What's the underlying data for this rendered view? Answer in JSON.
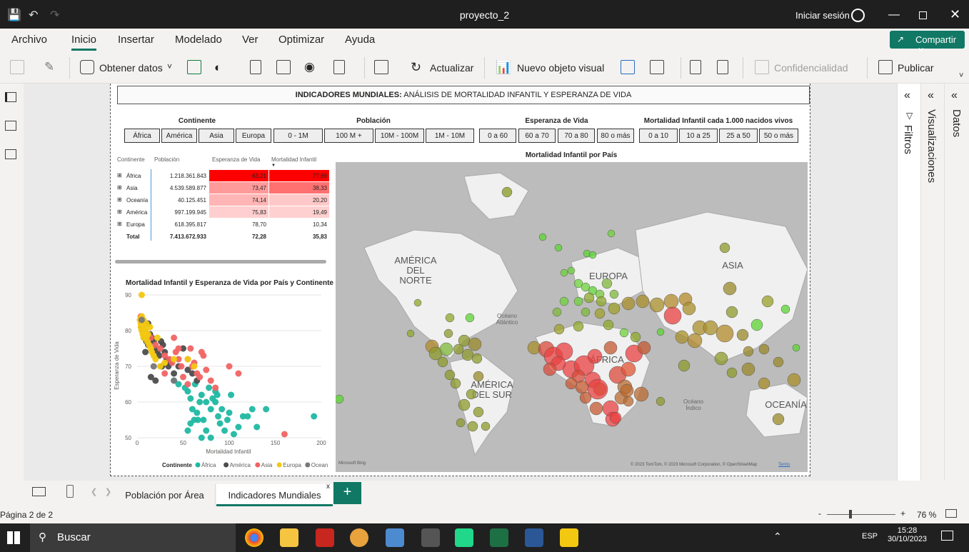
{
  "window": {
    "title": "proyecto_2",
    "signin_label": "Iniciar sesión"
  },
  "menu": {
    "tabs": [
      "Archivo",
      "Inicio",
      "Insertar",
      "Modelado",
      "Ver",
      "Optimizar",
      "Ayuda"
    ],
    "share_label": "Compartir"
  },
  "ribbon": {
    "get_data": "Obtener datos",
    "refresh": "Actualizar",
    "new_visual": "Nuevo objeto visual",
    "sensitivity": "Confidencialidad",
    "publish": "Publicar"
  },
  "report": {
    "title_bold": "INDICADORES MUNDIALES:",
    "title_rest": " ANÁLISIS DE MORTALIDAD INFANTIL Y ESPERANZA DE VIDA",
    "slicers": [
      {
        "title": "Continente",
        "options": [
          "África",
          "América",
          "Asia",
          "Europa"
        ]
      },
      {
        "title": "Población",
        "options": [
          "0 - 1M",
          "100 M +",
          "10M - 100M",
          "1M - 10M"
        ]
      },
      {
        "title": "Esperanza de Vida",
        "options": [
          "0 a 60",
          "60 a 70",
          "70 a 80",
          "80 o más"
        ]
      },
      {
        "title": "Mortalidad Infantil cada 1.000 nacidos vivos",
        "options": [
          "0 a 10",
          "10 a 25",
          "25 a 50",
          "50 o más"
        ]
      }
    ],
    "matrix": {
      "headers": [
        "Continente",
        "Población",
        "Esperanza de Vida",
        "Mortalidad Infantil"
      ],
      "rows": [
        {
          "continent": "África",
          "population": "1.218.361.843",
          "life": "63,21",
          "mortality": "77,69",
          "lifeColor": "#ff0000",
          "mortColor": "#ff0000"
        },
        {
          "continent": "Asia",
          "population": "4.539.589.877",
          "life": "73,47",
          "mortality": "38,33",
          "lifeColor": "#ff9a9a",
          "mortColor": "#ff7070"
        },
        {
          "continent": "Oceanía",
          "population": "40.125.451",
          "life": "74,14",
          "mortality": "20,20",
          "lifeColor": "#ffb5b5",
          "mortColor": "#ffc8c8"
        },
        {
          "continent": "América",
          "population": "997.199.945",
          "life": "75,83",
          "mortality": "19,49",
          "lifeColor": "#ffcfcf",
          "mortColor": "#ffd0d0"
        },
        {
          "continent": "Europa",
          "population": "618.395.817",
          "life": "78,70",
          "mortality": "10,34",
          "lifeColor": "#ffffff",
          "mortColor": "#ffffff"
        }
      ],
      "total": {
        "label": "Total",
        "population": "7.413.672.933",
        "life": "72,28",
        "mortality": "35,83"
      }
    },
    "map": {
      "title": "Mortalidad Infantil por País",
      "labels": [
        "AMÉRICA DEL NORTE",
        "EUROPA",
        "ASIA",
        "ÁFRICA",
        "AMÉRICA DEL SUR",
        "OCEANÍA"
      ],
      "oceans": [
        "Océano Atlántico",
        "Océano Índico"
      ],
      "copyright": "© 2023 TomTom, © 2023 Microsoft Corporation, © OpenStreetMap",
      "terms": "Terms",
      "bing": "Microsoft Bing"
    }
  },
  "chart_data": {
    "type": "scatter",
    "title": "Mortalidad Infantil y Esperanza de Vida por País y Continente",
    "xlabel": "Mortalidad Infantil",
    "ylabel": "Esperanza de Vida",
    "xlim": [
      0,
      200
    ],
    "ylim": [
      50,
      90
    ],
    "xticks": [
      0,
      50,
      100,
      150,
      200
    ],
    "yticks": [
      50,
      60,
      70,
      80,
      90
    ],
    "legend_title": "Continente",
    "legend_position": "bottom",
    "series": [
      {
        "name": "África",
        "color": "#1fb8a2",
        "points": [
          [
            40,
            66
          ],
          [
            45,
            65
          ],
          [
            52,
            64
          ],
          [
            55,
            63
          ],
          [
            58,
            61
          ],
          [
            60,
            58
          ],
          [
            62,
            55
          ],
          [
            55,
            52
          ],
          [
            58,
            54
          ],
          [
            65,
            57
          ],
          [
            68,
            60
          ],
          [
            70,
            62
          ],
          [
            72,
            55
          ],
          [
            75,
            52
          ],
          [
            80,
            58
          ],
          [
            82,
            61
          ],
          [
            85,
            63
          ],
          [
            88,
            56
          ],
          [
            90,
            54
          ],
          [
            95,
            52
          ],
          [
            98,
            55
          ],
          [
            100,
            57
          ],
          [
            102,
            62
          ],
          [
            105,
            51
          ],
          [
            110,
            53
          ],
          [
            115,
            56
          ],
          [
            120,
            56
          ],
          [
            125,
            58
          ],
          [
            130,
            53
          ],
          [
            140,
            58
          ],
          [
            192,
            56
          ],
          [
            70,
            50
          ],
          [
            80,
            50
          ],
          [
            66,
            55
          ],
          [
            75,
            60
          ],
          [
            85,
            60
          ],
          [
            92,
            58
          ],
          [
            78,
            64
          ],
          [
            87,
            62
          ],
          [
            63,
            65
          ]
        ]
      },
      {
        "name": "América",
        "color": "#4c4c4c",
        "points": [
          [
            5,
            81
          ],
          [
            7,
            80
          ],
          [
            8,
            78
          ],
          [
            10,
            77
          ],
          [
            12,
            76
          ],
          [
            14,
            79
          ],
          [
            16,
            78
          ],
          [
            18,
            77
          ],
          [
            20,
            75
          ],
          [
            22,
            74
          ],
          [
            24,
            73
          ],
          [
            26,
            77
          ],
          [
            28,
            76
          ],
          [
            30,
            74
          ],
          [
            32,
            72
          ],
          [
            34,
            70
          ],
          [
            36,
            71
          ],
          [
            40,
            68
          ],
          [
            45,
            70
          ],
          [
            50,
            75
          ],
          [
            55,
            69
          ],
          [
            60,
            68
          ],
          [
            65,
            66
          ],
          [
            15,
            67
          ],
          [
            20,
            66
          ],
          [
            27,
            70
          ],
          [
            12,
            82
          ],
          [
            9,
            74
          ]
        ]
      },
      {
        "name": "Asia",
        "color": "#f16363",
        "points": [
          [
            4,
            84
          ],
          [
            6,
            82
          ],
          [
            8,
            80
          ],
          [
            10,
            79
          ],
          [
            15,
            78
          ],
          [
            20,
            76
          ],
          [
            25,
            75
          ],
          [
            30,
            73
          ],
          [
            35,
            72
          ],
          [
            38,
            71
          ],
          [
            42,
            74
          ],
          [
            45,
            72
          ],
          [
            48,
            70
          ],
          [
            50,
            67
          ],
          [
            55,
            72
          ],
          [
            58,
            75
          ],
          [
            60,
            70
          ],
          [
            62,
            71
          ],
          [
            65,
            68
          ],
          [
            68,
            67
          ],
          [
            70,
            74
          ],
          [
            72,
            73
          ],
          [
            75,
            69
          ],
          [
            80,
            66
          ],
          [
            85,
            64
          ],
          [
            100,
            70
          ],
          [
            110,
            68
          ],
          [
            160,
            51
          ],
          [
            40,
            78
          ],
          [
            45,
            75
          ],
          [
            55,
            65
          ],
          [
            30,
            68
          ]
        ]
      },
      {
        "name": "Europa",
        "color": "#f2c811",
        "points": [
          [
            3,
            83
          ],
          [
            4,
            82
          ],
          [
            4,
            81
          ],
          [
            5,
            80
          ],
          [
            5,
            84
          ],
          [
            6,
            79
          ],
          [
            6,
            82
          ],
          [
            7,
            83
          ],
          [
            7,
            78
          ],
          [
            8,
            81
          ],
          [
            8,
            79
          ],
          [
            9,
            80
          ],
          [
            10,
            78
          ],
          [
            10,
            82
          ],
          [
            11,
            77
          ],
          [
            12,
            79
          ],
          [
            13,
            76
          ],
          [
            14,
            81
          ],
          [
            15,
            75
          ],
          [
            16,
            74
          ],
          [
            18,
            73
          ],
          [
            20,
            72
          ],
          [
            25,
            70
          ],
          [
            5,
            90
          ],
          [
            22,
            78
          ],
          [
            30,
            71
          ],
          [
            40,
            72
          ],
          [
            55,
            72
          ],
          [
            62,
            70
          ]
        ]
      },
      {
        "name": "Oceanía",
        "color": "#777777",
        "points": [
          [
            5,
            83
          ],
          [
            18,
            70
          ],
          [
            40,
            66
          ]
        ]
      }
    ]
  }
}
